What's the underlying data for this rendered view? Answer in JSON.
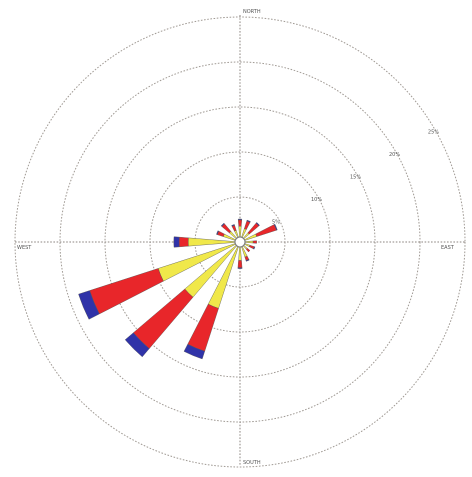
{
  "chart_data": {
    "type": "wind-rose",
    "directions": [
      0,
      22.5,
      45,
      67.5,
      90,
      112.5,
      135,
      157.5,
      180,
      202.5,
      225,
      247.5,
      270,
      292.5,
      315,
      337.5
    ],
    "compass_labels": {
      "north": "NORTH",
      "east": "EAST",
      "south": "SOUTH",
      "west": "WEST"
    },
    "rings": [
      {
        "value": 5,
        "label": "5%"
      },
      {
        "value": 10,
        "label": "10%"
      },
      {
        "value": 15,
        "label": "15%"
      },
      {
        "value": 20,
        "label": "20%"
      },
      {
        "value": 25,
        "label": "25%"
      }
    ],
    "rmax": 25,
    "series": [
      {
        "color": "#f0e84a",
        "values": [
          1.2,
          1.0,
          0.8,
          1.4,
          0.9,
          0.6,
          0.5,
          1.2,
          1.5,
          7.2,
          7.5,
          9.0,
          5.2,
          1.4,
          1.0,
          0.8
        ]
      },
      {
        "color": "#e8262a",
        "values": [
          0.7,
          0.9,
          1.4,
          2.3,
          0.4,
          0.5,
          0.4,
          0.4,
          0.8,
          5.0,
          7.5,
          8.0,
          1.0,
          0.7,
          1.1,
          0.6
        ]
      },
      {
        "color": "#3033a8",
        "values": [
          0.1,
          0.1,
          0.1,
          0.1,
          0.0,
          0.1,
          0.0,
          0.1,
          0.1,
          0.9,
          1.2,
          1.3,
          0.6,
          0.1,
          0.1,
          0.1
        ]
      }
    ]
  }
}
